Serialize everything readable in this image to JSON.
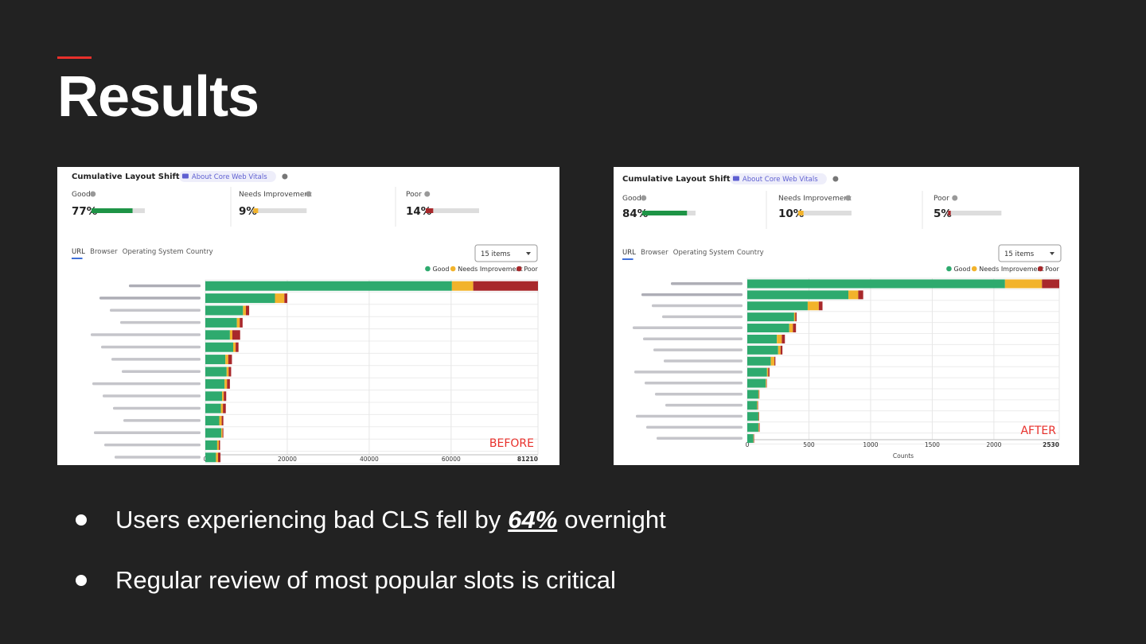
{
  "slide": {
    "title": "Results"
  },
  "bullets": {
    "b1_pre": "Users experiencing bad CLS fell by",
    "b1_emph": "64%",
    "b1_post": "overnight",
    "b2": "Regular review of most popular slots is critical"
  },
  "colors": {
    "good": "#2eaa6e",
    "needs": "#f2b32b",
    "poor": "#a8282b",
    "good_bar": "#1e9446",
    "tag": "#e8302b",
    "link": "#5e5fd1"
  },
  "legend": {
    "good": "Good",
    "needs": "Needs Improvement",
    "poor": "Poor"
  },
  "chart_data": [
    {
      "type": "bar",
      "orientation": "horizontal",
      "stacked": true,
      "title": "Cumulative Layout Shift",
      "link": "About Core Web Vitals",
      "summary": [
        {
          "label": "Good",
          "percent": 77,
          "display": "77%"
        },
        {
          "label": "Needs Improvement",
          "percent": 9,
          "display": "9%"
        },
        {
          "label": "Poor",
          "percent": 14,
          "display": "14%"
        }
      ],
      "tabs": [
        "URL",
        "Browser",
        "Operating System",
        "Country"
      ],
      "selected_tab": "URL",
      "dropdown": "15 items",
      "tag": "BEFORE",
      "xlabel": "",
      "xlim": [
        0,
        81210
      ],
      "x_ticks": [
        {
          "value": 0,
          "label": "0"
        },
        {
          "value": 20000,
          "label": "20000"
        },
        {
          "value": 40000,
          "label": "40000"
        },
        {
          "value": 60000,
          "label": "60000"
        },
        {
          "value": 81210,
          "label": "81210"
        }
      ],
      "series": [
        {
          "name": "Good",
          "values": [
            60200,
            17000,
            9200,
            7700,
            6000,
            6800,
            4900,
            5200,
            4700,
            4100,
            3800,
            3400,
            3900,
            2900,
            2600
          ]
        },
        {
          "name": "Needs Improvement",
          "values": [
            5200,
            2300,
            700,
            700,
            600,
            600,
            700,
            500,
            600,
            400,
            500,
            600,
            300,
            400,
            500
          ]
        },
        {
          "name": "Poor",
          "values": [
            15810,
            700,
            800,
            700,
            1900,
            700,
            900,
            600,
            700,
            600,
            700,
            400,
            200,
            300,
            600
          ]
        }
      ]
    },
    {
      "type": "bar",
      "orientation": "horizontal",
      "stacked": true,
      "title": "Cumulative Layout Shift",
      "link": "About Core Web Vitals",
      "summary": [
        {
          "label": "Good",
          "percent": 84,
          "display": "84%"
        },
        {
          "label": "Needs Improvement",
          "percent": 10,
          "display": "10%"
        },
        {
          "label": "Poor",
          "percent": 5,
          "display": "5%"
        }
      ],
      "tabs": [
        "URL",
        "Browser",
        "Operating System",
        "Country"
      ],
      "selected_tab": "URL",
      "dropdown": "15 items",
      "tag": "AFTER",
      "xlabel": "Counts",
      "xlim": [
        0,
        2530
      ],
      "x_ticks": [
        {
          "value": 0,
          "label": "0"
        },
        {
          "value": 500,
          "label": "500"
        },
        {
          "value": 1000,
          "label": "1000"
        },
        {
          "value": 1500,
          "label": "1500"
        },
        {
          "value": 2000,
          "label": "2000"
        },
        {
          "value": 2530,
          "label": "2530"
        }
      ],
      "series": [
        {
          "name": "Good",
          "values": [
            2090,
            820,
            490,
            380,
            340,
            240,
            250,
            190,
            160,
            150,
            90,
            80,
            90,
            90,
            50
          ]
        },
        {
          "name": "Needs Improvement",
          "values": [
            300,
            80,
            90,
            10,
            30,
            40,
            20,
            30,
            10,
            5,
            5,
            5,
            3,
            5,
            3
          ]
        },
        {
          "name": "Poor",
          "values": [
            140,
            40,
            30,
            10,
            25,
            25,
            15,
            8,
            10,
            3,
            3,
            3,
            2,
            5,
            2
          ]
        }
      ]
    }
  ]
}
